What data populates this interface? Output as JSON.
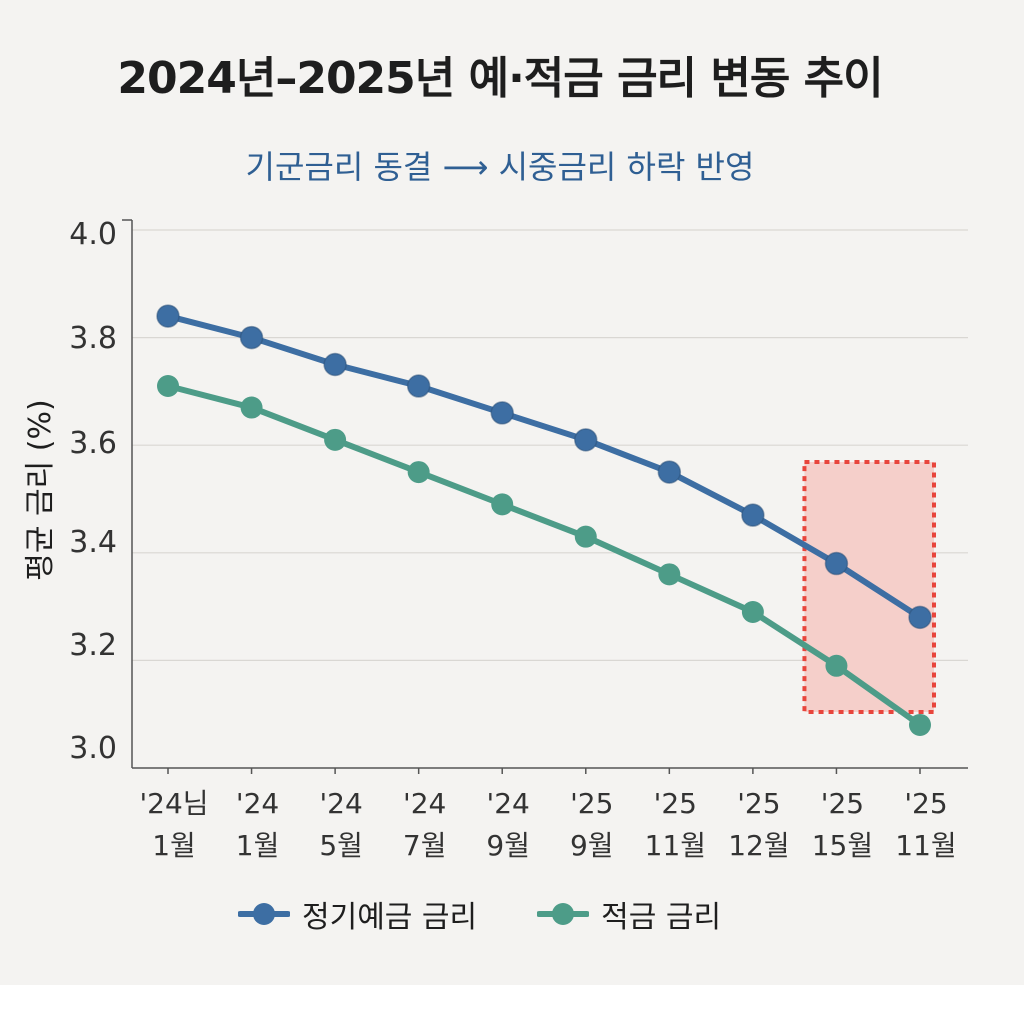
{
  "chart_data": {
    "type": "line",
    "title": "2024년–2025년 예·적금 금리 변동 추이",
    "subtitle": {
      "left": "기군금리 동결",
      "arrow": "⟶",
      "right": "시중금리 하락 반영"
    },
    "ylabel": "평균 금리 (%)",
    "xlabel": "",
    "ylim": [
      3.0,
      4.0
    ],
    "yticks": [
      "4.0",
      "3.8",
      "3.6",
      "3.4",
      "3.2",
      "3.0"
    ],
    "grid": true,
    "categories": [
      [
        "'24님",
        "1월"
      ],
      [
        "'24",
        "1월"
      ],
      [
        "'24",
        "5월"
      ],
      [
        "'24",
        "7월"
      ],
      [
        "'24",
        "9월"
      ],
      [
        "'25",
        "9월"
      ],
      [
        "'25",
        "11월"
      ],
      [
        "'25",
        "12월"
      ],
      [
        "'25",
        "15월"
      ],
      [
        "'25",
        "11월"
      ]
    ],
    "series": [
      {
        "name": "정기예금 금리",
        "color": "#3d6ea3",
        "values": [
          3.84,
          3.8,
          3.75,
          3.71,
          3.66,
          3.61,
          3.55,
          3.47,
          3.38,
          3.28
        ]
      },
      {
        "name": "적금 금리",
        "color": "#4d9c88",
        "values": [
          3.71,
          3.67,
          3.61,
          3.55,
          3.49,
          3.43,
          3.36,
          3.29,
          3.19,
          3.08
        ]
      }
    ],
    "highlight": {
      "from_index": 8,
      "to_index": 9,
      "fill": "#f5cfca",
      "border": "#e8453c"
    },
    "legend_position": "bottom"
  }
}
